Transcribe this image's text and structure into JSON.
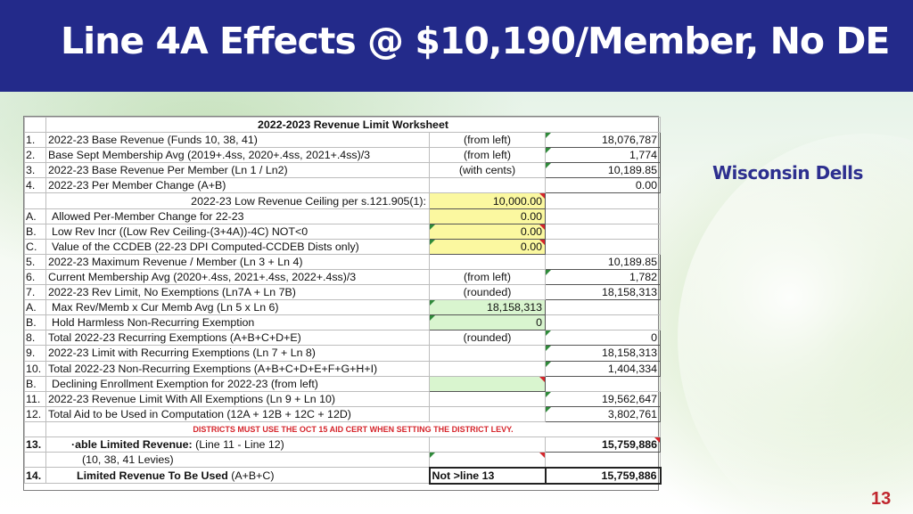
{
  "slide": {
    "title": "Line 4A Effects @ $10,190/Member, No DE",
    "district": "Wisconsin Dells",
    "page_number": "13"
  },
  "worksheet": {
    "title": "2022-2023 Revenue Limit Worksheet",
    "rows": [
      {
        "num": "1.",
        "label": "2022-23 Base Revenue (Funds 10, 38, 41)",
        "note": "(from left)",
        "mid": "",
        "value": "18,076,787"
      },
      {
        "num": "2.",
        "label": "Base Sept Membership Avg  (2019+.4ss, 2020+.4ss, 2021+.4ss)/3",
        "note": "(from left)",
        "mid": "",
        "value": "1,774"
      },
      {
        "num": "3.",
        "label": "2022-23 Base Revenue Per Member (Ln 1 / Ln2)",
        "note": "(with cents)",
        "mid": "",
        "value": "10,189.85"
      },
      {
        "num": "4.",
        "label": "2022-23 Per Member Change   (A+B)",
        "note": "",
        "mid": "",
        "value": "0.00"
      },
      {
        "num": "",
        "label": "2022-23 Low Revenue Ceiling per s.121.905(1):",
        "note": "",
        "mid": "10,000.00",
        "value": ""
      },
      {
        "num": "A.",
        "label": "Allowed Per-Member Change for 22-23",
        "note": "",
        "mid": "0.00",
        "value": ""
      },
      {
        "num": "B.",
        "label": "Low Rev Incr ((Low Rev Ceiling-(3+4A))-4C) NOT<0",
        "note": "",
        "mid": "0.00",
        "value": ""
      },
      {
        "num": "C.",
        "label": "Value of the CCDEB (22-23 DPI Computed-CCDEB Dists only)",
        "note": "",
        "mid": "0.00",
        "value": ""
      },
      {
        "num": "5.",
        "label": "2022-23 Maximum Revenue / Member (Ln 3 + Ln 4)",
        "note": "",
        "mid": "",
        "value": "10,189.85"
      },
      {
        "num": "6.",
        "label": "Current Membership Avg  (2020+.4ss, 2021+.4ss, 2022+.4ss)/3",
        "note": "(from left)",
        "mid": "",
        "value": "1,782"
      },
      {
        "num": "7.",
        "label": "2022-23 Rev Limit, No Exemptions (Ln7A + Ln 7B)",
        "note": "(rounded)",
        "mid": "",
        "value": "18,158,313"
      },
      {
        "num": "A.",
        "label": "Max Rev/Memb x Cur Memb Avg (Ln 5 x Ln 6)",
        "note": "",
        "mid": "18,158,313",
        "value": ""
      },
      {
        "num": "B.",
        "label": "Hold Harmless Non-Recurring Exemption",
        "note": "",
        "mid": "0",
        "value": ""
      },
      {
        "num": "8.",
        "label": "Total 2022-23 Recurring Exemptions  (A+B+C+D+E)",
        "note": "(rounded)",
        "mid": "",
        "value": "0"
      },
      {
        "num": "9.",
        "label": "2022-23 Limit with Recurring Exemptions   (Ln 7 + Ln 8)",
        "note": "",
        "mid": "",
        "value": "18,158,313"
      },
      {
        "num": "10.",
        "label": "Total 2022-23 Non-Recurring Exemptions  (A+B+C+D+E+F+G+H+I)",
        "note": "",
        "mid": "",
        "value": "1,404,334"
      },
      {
        "num": "B.",
        "label": "Declining Enrollment Exemption for 2022-23 (from left)",
        "note": "",
        "mid": "",
        "value": ""
      },
      {
        "num": "11.",
        "label": "2022-23 Revenue Limit With All Exemptions    (Ln 9 + Ln 10)",
        "note": "",
        "mid": "",
        "value": "19,562,647"
      },
      {
        "num": "12.",
        "label": "Total Aid to be Used in Computation (12A + 12B + 12C + 12D)",
        "note": "",
        "mid": "",
        "value": "3,802,761"
      }
    ],
    "warning": "DISTRICTS MUST USE THE OCT 15 AID CERT WHEN SETTING THE DISTRICT LEVY.",
    "row13": {
      "num": "13.",
      "label_bold": "·able Limited Revenue:",
      "label_rest": " (Line 11 - Line 12)",
      "value": "15,759,886"
    },
    "row13b": {
      "label": "(10, 38, 41 Levies)"
    },
    "row14": {
      "num": "14.",
      "label_bold": "Limited Revenue To Be Used",
      "label_rest": " (A+B+C)",
      "mid": "Not >line 13",
      "value": "15,759,886"
    }
  },
  "colors": {
    "header_bg": "#232a8a",
    "yellow_cell": "#fbf8a0",
    "green_cell": "#d9f5cf",
    "page_number": "#c0262d"
  }
}
